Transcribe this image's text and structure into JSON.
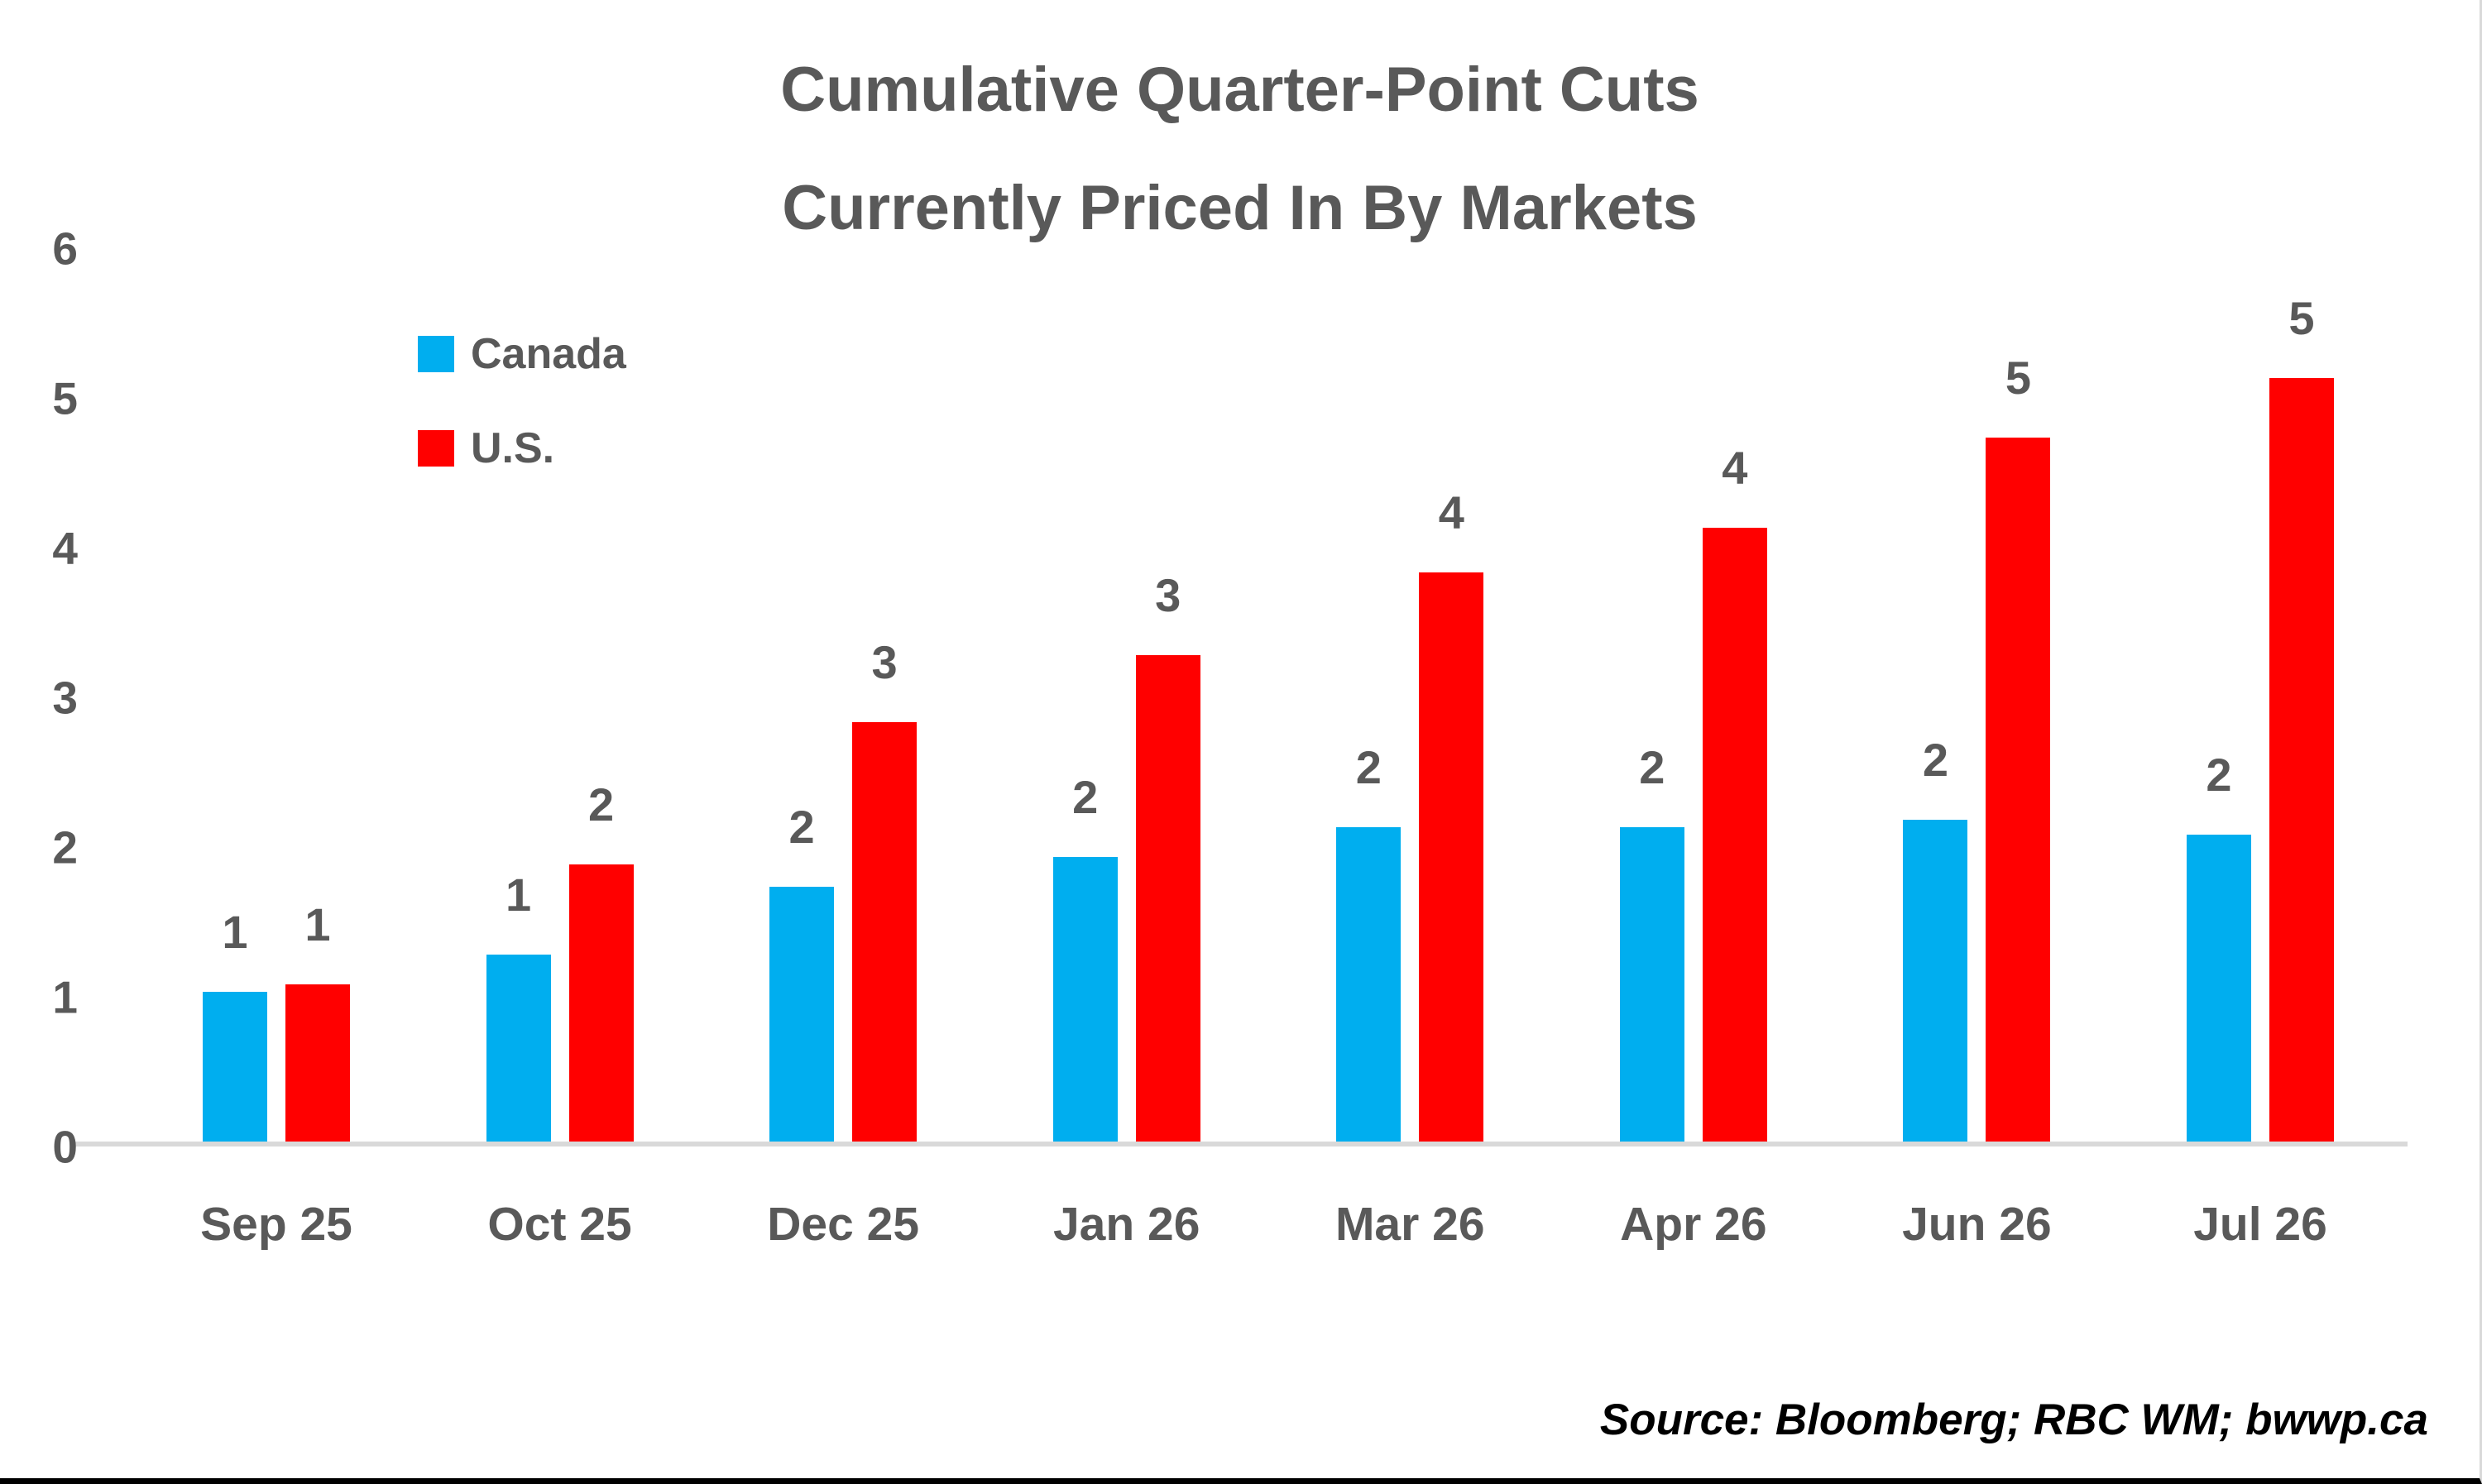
{
  "title": {
    "line1": "Cumulative Quarter-Point Cuts",
    "line2": "Currently Priced In By Markets"
  },
  "source_note": "Source: Bloomberg; RBC WM; bwwp.ca",
  "colors": {
    "canada_blue": "#00AEEF",
    "us_red": "#FF0000",
    "text_gray": "#595959",
    "axis_line_gray": "#D9D9D9",
    "background": "#FFFFFF",
    "bottom_border": "#000000",
    "source_text": "#000000"
  },
  "chart_data": {
    "type": "bar",
    "title": "Cumulative Quarter-Point Cuts Currently Priced In By Markets",
    "xlabel": "",
    "ylabel": "",
    "categories": [
      "Sep 25",
      "Oct 25",
      "Dec 25",
      "Jan 26",
      "Mar 26",
      "Apr 26",
      "Jun 26",
      "Jul 26"
    ],
    "series": [
      {
        "name": "Canada",
        "color": "#00AEEF",
        "values": [
          1.0,
          1.25,
          1.7,
          1.9,
          2.1,
          2.1,
          2.15,
          2.05
        ],
        "labels": [
          "1",
          "1",
          "2",
          "2",
          "2",
          "2",
          "2",
          "2"
        ]
      },
      {
        "name": "U.S.",
        "color": "#FF0000",
        "values": [
          1.05,
          1.85,
          2.8,
          3.25,
          3.8,
          4.1,
          4.7,
          5.1
        ],
        "labels": [
          "1",
          "2",
          "3",
          "3",
          "4",
          "4",
          "5",
          "5"
        ]
      }
    ],
    "yticks": [
      0,
      1,
      2,
      3,
      4,
      5,
      6
    ],
    "ylim": [
      0,
      6
    ],
    "grid": false,
    "legend_position": "top-left-inside"
  }
}
